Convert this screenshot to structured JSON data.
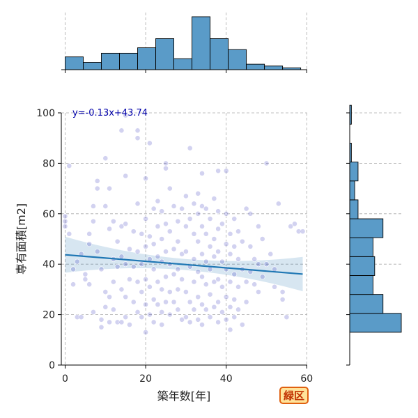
{
  "badge": "緑区",
  "chart_data": {
    "type": "scatter",
    "xlabel": "築年数[年]",
    "ylabel": "専有面積[m2]",
    "xlim": [
      -1,
      60
    ],
    "ylim": [
      0,
      100
    ],
    "xticks": [
      0,
      20,
      40,
      60
    ],
    "yticks": [
      0,
      20,
      40,
      60,
      80,
      100
    ],
    "grid": true,
    "annotation": "y=-0.13x+43.74",
    "regression": {
      "slope": -0.13,
      "intercept": 43.74,
      "x_range": [
        0,
        59
      ]
    },
    "colors": {
      "points": "#3333bb",
      "line": "#1f77b4",
      "band": "#1f77b4",
      "hist": "#5a9bc8"
    },
    "marginal_x": {
      "bin_edges": [
        0,
        4.5,
        9,
        13.5,
        18,
        22.5,
        27,
        31.5,
        36,
        40.5,
        45,
        49.5,
        54,
        58.5
      ],
      "counts": [
        7,
        4,
        9,
        9,
        12,
        17,
        6,
        29,
        17,
        11,
        3,
        2,
        1
      ]
    },
    "marginal_y": {
      "bin_edges": [
        13,
        20.5,
        28,
        35.5,
        43,
        50.5,
        58,
        65.5,
        73,
        80.5,
        88,
        95.5,
        103
      ],
      "counts": [
        31,
        20,
        14,
        15,
        14,
        20,
        5,
        3,
        5,
        1,
        0,
        1
      ]
    },
    "points": [
      [
        0,
        57
      ],
      [
        0,
        59
      ],
      [
        0,
        55
      ],
      [
        1,
        79
      ],
      [
        1,
        52
      ],
      [
        2,
        38
      ],
      [
        2,
        32
      ],
      [
        3,
        41
      ],
      [
        3,
        19
      ],
      [
        4,
        19
      ],
      [
        4,
        44
      ],
      [
        5,
        36
      ],
      [
        5,
        34
      ],
      [
        6,
        32
      ],
      [
        6,
        48
      ],
      [
        6,
        52
      ],
      [
        7,
        57
      ],
      [
        7,
        63
      ],
      [
        7,
        21
      ],
      [
        8,
        73
      ],
      [
        8,
        70
      ],
      [
        8,
        45
      ],
      [
        9,
        38
      ],
      [
        9,
        18
      ],
      [
        9,
        15
      ],
      [
        10,
        82
      ],
      [
        10,
        63
      ],
      [
        10,
        23
      ],
      [
        10,
        29
      ],
      [
        11,
        70
      ],
      [
        11,
        54
      ],
      [
        11,
        27
      ],
      [
        11,
        17
      ],
      [
        12,
        57
      ],
      [
        12,
        42
      ],
      [
        12,
        33
      ],
      [
        12,
        22
      ],
      [
        13,
        49
      ],
      [
        13,
        39
      ],
      [
        13,
        17
      ],
      [
        14,
        93
      ],
      [
        14,
        55
      ],
      [
        14,
        43
      ],
      [
        14,
        30
      ],
      [
        14,
        17
      ],
      [
        15,
        99
      ],
      [
        15,
        75
      ],
      [
        15,
        56
      ],
      [
        15,
        40
      ],
      [
        15,
        27
      ],
      [
        15,
        19
      ],
      [
        16,
        46
      ],
      [
        16,
        34
      ],
      [
        16,
        16
      ],
      [
        17,
        53
      ],
      [
        17,
        39
      ],
      [
        17,
        25
      ],
      [
        18,
        93
      ],
      [
        18,
        90
      ],
      [
        18,
        64
      ],
      [
        18,
        45
      ],
      [
        18,
        33
      ],
      [
        18,
        21
      ],
      [
        19,
        52
      ],
      [
        19,
        40
      ],
      [
        19,
        29
      ],
      [
        19,
        19
      ],
      [
        20,
        74
      ],
      [
        20,
        58
      ],
      [
        20,
        47
      ],
      [
        20,
        34
      ],
      [
        20,
        24
      ],
      [
        20,
        13
      ],
      [
        21,
        88
      ],
      [
        21,
        51
      ],
      [
        21,
        42
      ],
      [
        21,
        31
      ],
      [
        21,
        20
      ],
      [
        22,
        62
      ],
      [
        22,
        48
      ],
      [
        22,
        38
      ],
      [
        22,
        26
      ],
      [
        22,
        17
      ],
      [
        23,
        65
      ],
      [
        23,
        55
      ],
      [
        23,
        43
      ],
      [
        23,
        33
      ],
      [
        23,
        24
      ],
      [
        24,
        61
      ],
      [
        24,
        50
      ],
      [
        24,
        41
      ],
      [
        24,
        30
      ],
      [
        24,
        21
      ],
      [
        24,
        16
      ],
      [
        25,
        80
      ],
      [
        25,
        78
      ],
      [
        25,
        56
      ],
      [
        25,
        45
      ],
      [
        25,
        35
      ],
      [
        25,
        25
      ],
      [
        26,
        70
      ],
      [
        26,
        53
      ],
      [
        26,
        40
      ],
      [
        26,
        29
      ],
      [
        26,
        20
      ],
      [
        27,
        63
      ],
      [
        27,
        46
      ],
      [
        27,
        36
      ],
      [
        27,
        25
      ],
      [
        28,
        57
      ],
      [
        28,
        49
      ],
      [
        28,
        38
      ],
      [
        28,
        30
      ],
      [
        28,
        22
      ],
      [
        29,
        62
      ],
      [
        29,
        44
      ],
      [
        29,
        34
      ],
      [
        29,
        18
      ],
      [
        30,
        67
      ],
      [
        30,
        55
      ],
      [
        30,
        45
      ],
      [
        30,
        29
      ],
      [
        30,
        19
      ],
      [
        31,
        86
      ],
      [
        31,
        58
      ],
      [
        31,
        39
      ],
      [
        31,
        25
      ],
      [
        31,
        17
      ],
      [
        32,
        64
      ],
      [
        32,
        52
      ],
      [
        32,
        42
      ],
      [
        32,
        33
      ],
      [
        32,
        22
      ],
      [
        33,
        68
      ],
      [
        33,
        60
      ],
      [
        33,
        49
      ],
      [
        33,
        37
      ],
      [
        33,
        27
      ],
      [
        33,
        18
      ],
      [
        34,
        76
      ],
      [
        34,
        63
      ],
      [
        34,
        55
      ],
      [
        34,
        44
      ],
      [
        34,
        35
      ],
      [
        34,
        24
      ],
      [
        34,
        16
      ],
      [
        35,
        62
      ],
      [
        35,
        52
      ],
      [
        35,
        41
      ],
      [
        35,
        32
      ],
      [
        35,
        22
      ],
      [
        36,
        58
      ],
      [
        36,
        47
      ],
      [
        36,
        38
      ],
      [
        36,
        28
      ],
      [
        36,
        19
      ],
      [
        37,
        66
      ],
      [
        37,
        50
      ],
      [
        37,
        43
      ],
      [
        37,
        33
      ],
      [
        37,
        23
      ],
      [
        38,
        77
      ],
      [
        38,
        61
      ],
      [
        38,
        54
      ],
      [
        38,
        45
      ],
      [
        38,
        34
      ],
      [
        38,
        25
      ],
      [
        38,
        17
      ],
      [
        39,
        56
      ],
      [
        39,
        41
      ],
      [
        39,
        31
      ],
      [
        39,
        21
      ],
      [
        40,
        77
      ],
      [
        40,
        60
      ],
      [
        40,
        48
      ],
      [
        40,
        38
      ],
      [
        40,
        27
      ],
      [
        40,
        18
      ],
      [
        41,
        52
      ],
      [
        41,
        44
      ],
      [
        41,
        33
      ],
      [
        41,
        23
      ],
      [
        41,
        14
      ],
      [
        42,
        58
      ],
      [
        42,
        47
      ],
      [
        42,
        36
      ],
      [
        42,
        26
      ],
      [
        42,
        19
      ],
      [
        43,
        53
      ],
      [
        43,
        42
      ],
      [
        43,
        31
      ],
      [
        43,
        22
      ],
      [
        44,
        49
      ],
      [
        44,
        38
      ],
      [
        44,
        16
      ],
      [
        45,
        62
      ],
      [
        45,
        33
      ],
      [
        45,
        25
      ],
      [
        46,
        60
      ],
      [
        46,
        47
      ],
      [
        46,
        37
      ],
      [
        47,
        42
      ],
      [
        47,
        32
      ],
      [
        48,
        55
      ],
      [
        48,
        40
      ],
      [
        48,
        29
      ],
      [
        49,
        50
      ],
      [
        49,
        35
      ],
      [
        50,
        80
      ],
      [
        50,
        40
      ],
      [
        51,
        44
      ],
      [
        52,
        38
      ],
      [
        52,
        31
      ],
      [
        53,
        64
      ],
      [
        54,
        29
      ],
      [
        54,
        26
      ],
      [
        55,
        19
      ],
      [
        56,
        55
      ],
      [
        57,
        56
      ],
      [
        58,
        53
      ],
      [
        59,
        53
      ]
    ]
  }
}
